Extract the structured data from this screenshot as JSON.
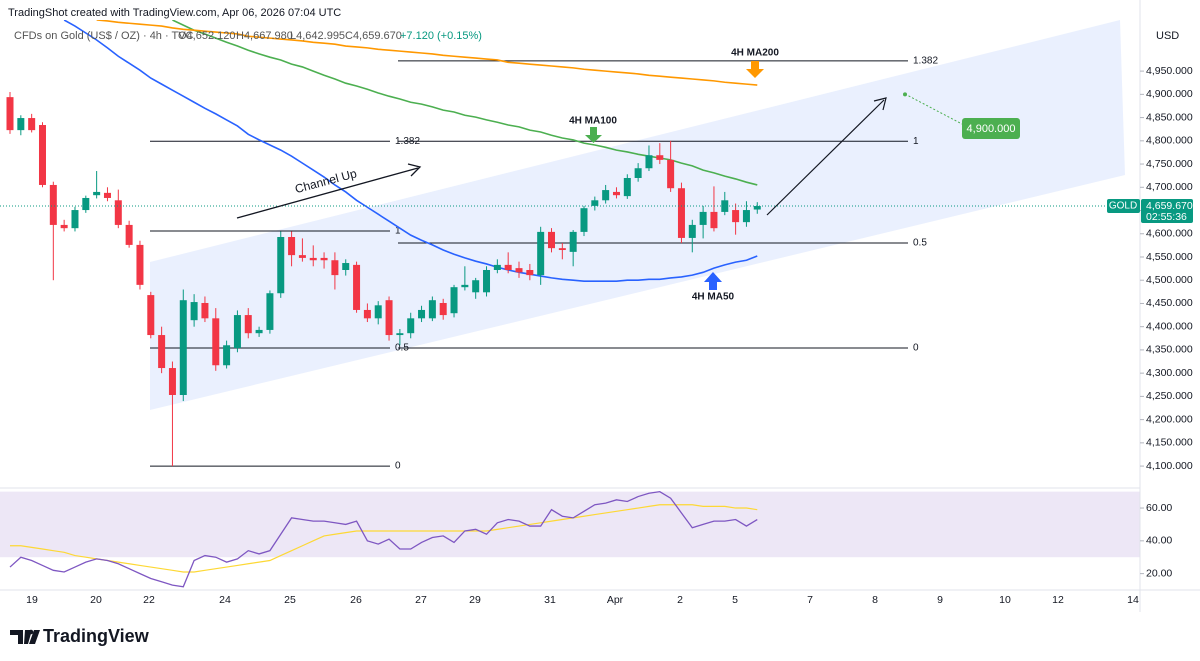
{
  "header": {
    "watermark": "TradingShot created with TradingView.com, Apr 06, 2026 07:04 UTC",
    "symbol": "CFDs on Gold (US$ / OZ) · 4h · TVC",
    "open": "O4,652.120",
    "high": "H4,667.980",
    "low": "L4,642.995",
    "close": "C4,659.670",
    "change": "+7.120 (+0.15%)",
    "currency": "USD"
  },
  "footer": {
    "brand": "TradingView"
  },
  "chart_data": {
    "type": "candlestick",
    "up_color": "#089981",
    "down_color": "#f23645",
    "ylim": [
      4055,
      5060
    ],
    "yticks": [
      {
        "value": 4100,
        "label": "4,100.000"
      },
      {
        "value": 4150,
        "label": "4,150.000"
      },
      {
        "value": 4200,
        "label": "4,200.000"
      },
      {
        "value": 4250,
        "label": "4,250.000"
      },
      {
        "value": 4300,
        "label": "4,300.000"
      },
      {
        "value": 4350,
        "label": "4,350.000"
      },
      {
        "value": 4400,
        "label": "4,400.000"
      },
      {
        "value": 4450,
        "label": "4,450.000"
      },
      {
        "value": 4500,
        "label": "4,500.000"
      },
      {
        "value": 4550,
        "label": "4,550.000"
      },
      {
        "value": 4600,
        "label": "4,600.000"
      },
      {
        "value": 4650,
        "label": "4,650.000"
      },
      {
        "value": 4700,
        "label": "4,700.000"
      },
      {
        "value": 4750,
        "label": "4,750.000"
      },
      {
        "value": 4800,
        "label": "4,800.000"
      },
      {
        "value": 4850,
        "label": "4,850.000"
      },
      {
        "value": 4900,
        "label": "4,900.000"
      },
      {
        "value": 4950,
        "label": "4,950.000"
      }
    ],
    "grid": false,
    "x_labels": [
      "19",
      "20",
      "22",
      "24",
      "25",
      "26",
      "27",
      "29",
      "31",
      "Apr",
      "2",
      "5",
      "7",
      "8",
      "9",
      "10",
      "12",
      "14"
    ],
    "ohlc": [
      [
        4894,
        4905,
        4815,
        4823
      ],
      [
        4823,
        4855,
        4812,
        4849
      ],
      [
        4849,
        4858,
        4818,
        4823
      ],
      [
        4834,
        4840,
        4700,
        4705
      ],
      [
        4705,
        4712,
        4500,
        4619
      ],
      [
        4619,
        4630,
        4605,
        4612
      ],
      [
        4612,
        4658,
        4605,
        4651
      ],
      [
        4651,
        4682,
        4645,
        4677
      ],
      [
        4683,
        4735,
        4676,
        4690
      ],
      [
        4688,
        4700,
        4670,
        4677
      ],
      [
        4672,
        4695,
        4612,
        4619
      ],
      [
        4619,
        4628,
        4570,
        4576
      ],
      [
        4576,
        4585,
        4480,
        4490
      ],
      [
        4468,
        4475,
        4375,
        4382
      ],
      [
        4382,
        4400,
        4300,
        4311
      ],
      [
        4311,
        4325,
        4100,
        4253
      ],
      [
        4253,
        4480,
        4240,
        4457
      ],
      [
        4414,
        4470,
        4400,
        4453
      ],
      [
        4451,
        4465,
        4410,
        4418
      ],
      [
        4418,
        4440,
        4305,
        4317
      ],
      [
        4317,
        4370,
        4310,
        4360
      ],
      [
        4354,
        4435,
        4345,
        4425
      ],
      [
        4425,
        4440,
        4375,
        4386
      ],
      [
        4386,
        4400,
        4378,
        4393
      ],
      [
        4393,
        4478,
        4385,
        4472
      ],
      [
        4472,
        4605,
        4462,
        4593
      ],
      [
        4593,
        4605,
        4530,
        4554
      ],
      [
        4554,
        4590,
        4540,
        4548
      ],
      [
        4548,
        4575,
        4530,
        4543
      ],
      [
        4548,
        4560,
        4525,
        4543
      ],
      [
        4543,
        4560,
        4480,
        4511
      ],
      [
        4522,
        4545,
        4510,
        4537
      ],
      [
        4533,
        4540,
        4430,
        4436
      ],
      [
        4436,
        4450,
        4410,
        4418
      ],
      [
        4418,
        4455,
        4405,
        4446
      ],
      [
        4457,
        4465,
        4370,
        4382
      ],
      [
        4382,
        4395,
        4360,
        4386
      ],
      [
        4386,
        4430,
        4375,
        4418
      ],
      [
        4418,
        4445,
        4410,
        4436
      ],
      [
        4418,
        4465,
        4412,
        4457
      ],
      [
        4451,
        4460,
        4415,
        4425
      ],
      [
        4429,
        4490,
        4420,
        4485
      ],
      [
        4485,
        4530,
        4478,
        4490
      ],
      [
        4474,
        4505,
        4460,
        4500
      ],
      [
        4474,
        4530,
        4465,
        4522
      ],
      [
        4522,
        4545,
        4515,
        4533
      ],
      [
        4533,
        4560,
        4515,
        4522
      ],
      [
        4526,
        4540,
        4505,
        4517
      ],
      [
        4522,
        4535,
        4500,
        4511
      ],
      [
        4511,
        4615,
        4490,
        4604
      ],
      [
        4604,
        4612,
        4560,
        4569
      ],
      [
        4569,
        4580,
        4545,
        4565
      ],
      [
        4561,
        4608,
        4530,
        4604
      ],
      [
        4604,
        4660,
        4595,
        4655
      ],
      [
        4660,
        4680,
        4650,
        4672
      ],
      [
        4672,
        4705,
        4665,
        4694
      ],
      [
        4690,
        4700,
        4676,
        4683
      ],
      [
        4681,
        4728,
        4675,
        4720
      ],
      [
        4720,
        4752,
        4712,
        4741
      ],
      [
        4741,
        4790,
        4735,
        4769
      ],
      [
        4769,
        4795,
        4750,
        4759
      ],
      [
        4759,
        4800,
        4690,
        4698
      ],
      [
        4698,
        4710,
        4580,
        4591
      ],
      [
        4591,
        4630,
        4560,
        4619
      ],
      [
        4619,
        4660,
        4590,
        4647
      ],
      [
        4647,
        4702,
        4605,
        4612
      ],
      [
        4647,
        4690,
        4640,
        4672
      ],
      [
        4651,
        4665,
        4598,
        4625
      ],
      [
        4625,
        4670,
        4615,
        4651
      ],
      [
        4652.12,
        4667.98,
        4642.995,
        4659.67
      ]
    ],
    "series": [
      {
        "name": "4H MA50",
        "color": "#2962ff",
        "values": [
          null,
          null,
          null,
          null,
          null,
          5060,
          5047,
          5032,
          5017,
          5000,
          4982,
          4967,
          4952,
          4935,
          4922,
          4909,
          4896,
          4883,
          4870,
          4858,
          4845,
          4832,
          4814,
          4802,
          4791,
          4780,
          4767,
          4752,
          4737,
          4722,
          4705,
          4690,
          4672,
          4657,
          4642,
          4627,
          4612,
          4597,
          4586,
          4576,
          4565,
          4556,
          4548,
          4541,
          4535,
          4528,
          4522,
          4517,
          4513,
          4509,
          4505,
          4502,
          4500,
          4498,
          4498,
          4498,
          4498,
          4500,
          4500,
          4502,
          4502,
          4505,
          4507,
          4511,
          4517,
          4526,
          4533,
          4539,
          4543,
          4552
        ]
      },
      {
        "name": "4H MA100",
        "color": "#4caf50",
        "values": [
          null,
          null,
          null,
          null,
          null,
          null,
          null,
          null,
          null,
          null,
          null,
          null,
          null,
          null,
          null,
          5060,
          5049,
          5038,
          5030,
          5021,
          5012,
          5004,
          4995,
          4987,
          4980,
          4974,
          4965,
          4959,
          4950,
          4941,
          4933,
          4924,
          4918,
          4911,
          4903,
          4896,
          4890,
          4883,
          4879,
          4873,
          4866,
          4862,
          4855,
          4851,
          4845,
          4840,
          4834,
          4830,
          4823,
          4819,
          4812,
          4806,
          4802,
          4795,
          4791,
          4786,
          4780,
          4776,
          4771,
          4767,
          4763,
          4759,
          4752,
          4746,
          4737,
          4731,
          4724,
          4718,
          4711,
          4705
        ]
      },
      {
        "name": "4H MA200",
        "color": "#ff9800",
        "values": [
          null,
          null,
          null,
          null,
          null,
          null,
          null,
          null,
          5060,
          5058,
          5055,
          5053,
          5051,
          5049,
          5047,
          5043,
          5040,
          5038,
          5036,
          5034,
          5032,
          5030,
          5025,
          5023,
          5021,
          5019,
          5017,
          5015,
          5012,
          5010,
          5008,
          5004,
          5002,
          5000,
          4997,
          4995,
          4993,
          4991,
          4989,
          4987,
          4984,
          4982,
          4980,
          4978,
          4976,
          4974,
          4969,
          4967,
          4965,
          4963,
          4961,
          4959,
          4957,
          4954,
          4952,
          4950,
          4948,
          4946,
          4944,
          4941,
          4939,
          4937,
          4935,
          4933,
          4931,
          4929,
          4926,
          4924,
          4922,
          4920
        ]
      }
    ],
    "annotation": "Channel Up",
    "fib_left": [
      {
        "label": "1.382",
        "price": 4799
      },
      {
        "label": "1",
        "price": 4606
      },
      {
        "label": "0.5",
        "price": 4354
      },
      {
        "label": "0",
        "price": 4100
      }
    ],
    "fib_right": [
      {
        "label": "1.382",
        "price": 4972
      },
      {
        "label": "1",
        "price": 4799
      },
      {
        "label": "0.5",
        "price": 4580
      },
      {
        "label": "0",
        "price": 4354
      }
    ],
    "target": {
      "value": 4900,
      "label": "4,900.000"
    },
    "last": {
      "symbol": "GOLD",
      "label": "4,659.670",
      "countdown": "02:55:36"
    },
    "rsi": {
      "ylim": [
        10,
        71
      ],
      "yticks": [
        {
          "value": 20,
          "label": "20.00"
        },
        {
          "value": 40,
          "label": "40.00"
        },
        {
          "value": 60,
          "label": "60.00"
        }
      ],
      "band": [
        30,
        70
      ],
      "color": "#7e57c2",
      "ma_color": "#fdd835",
      "values": [
        24,
        30,
        28,
        25,
        22,
        21,
        24,
        27,
        29,
        28,
        26,
        23,
        20,
        17,
        15,
        13,
        12,
        28,
        31,
        30,
        27,
        29,
        34,
        32,
        34,
        44,
        54,
        53,
        52,
        52,
        51,
        50,
        52,
        40,
        38,
        41,
        35,
        35,
        39,
        42,
        43,
        39,
        46,
        47,
        44,
        51,
        53,
        52,
        49,
        49,
        59,
        55,
        54,
        58,
        62,
        63,
        65,
        64,
        67,
        69,
        70,
        66,
        57,
        48,
        50,
        52,
        52,
        53,
        49,
        53
      ],
      "ma": [
        37,
        37,
        36,
        35,
        34,
        33,
        31,
        30,
        29,
        28,
        27,
        26,
        25,
        24,
        23,
        22,
        21,
        21,
        22,
        23,
        24,
        25,
        26,
        27,
        28,
        31,
        34,
        37,
        40,
        43,
        44,
        45,
        46,
        46,
        46,
        46,
        46,
        46,
        46,
        46,
        46,
        46,
        46,
        46,
        46,
        47,
        48,
        49,
        50,
        51,
        52,
        53,
        54,
        55,
        56,
        57,
        58,
        59,
        60,
        61,
        62,
        62,
        62,
        62,
        61,
        61,
        61,
        60,
        60,
        59
      ]
    }
  }
}
